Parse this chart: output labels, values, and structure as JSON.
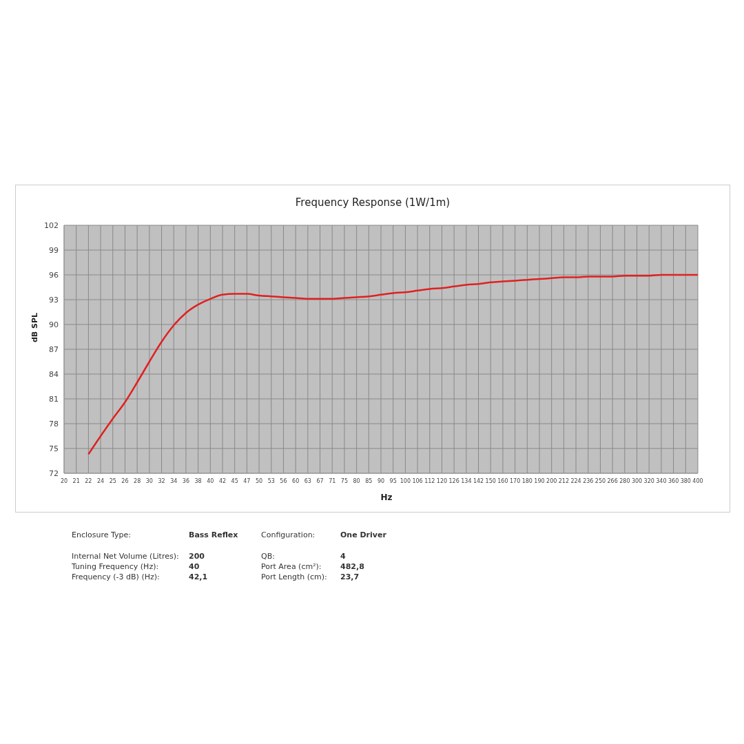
{
  "chart_data": {
    "type": "line",
    "title": "Frequency Response (1W/1m)",
    "xlabel": "Hz",
    "ylabel": "dB SPL",
    "categories": [
      "20",
      "21",
      "22",
      "24",
      "25",
      "26",
      "28",
      "30",
      "32",
      "34",
      "36",
      "38",
      "40",
      "42",
      "45",
      "47",
      "50",
      "53",
      "56",
      "60",
      "63",
      "67",
      "71",
      "75",
      "80",
      "85",
      "90",
      "95",
      "100",
      "106",
      "112",
      "120",
      "126",
      "134",
      "142",
      "150",
      "160",
      "170",
      "180",
      "190",
      "200",
      "212",
      "224",
      "236",
      "250",
      "266",
      "280",
      "300",
      "320",
      "340",
      "360",
      "380",
      "400"
    ],
    "series": [
      {
        "color": "#e02020",
        "values": [
          null,
          null,
          74.3,
          76.5,
          78.6,
          80.6,
          83.0,
          85.5,
          87.9,
          89.9,
          91.4,
          92.4,
          93.1,
          93.6,
          93.7,
          93.7,
          93.5,
          93.4,
          93.3,
          93.2,
          93.1,
          93.1,
          93.1,
          93.2,
          93.3,
          93.4,
          93.6,
          93.8,
          93.9,
          94.1,
          94.3,
          94.4,
          94.6,
          94.8,
          94.9,
          95.1,
          95.2,
          95.3,
          95.4,
          95.5,
          95.6,
          95.7,
          95.7,
          95.8,
          95.8,
          95.8,
          95.9,
          95.9,
          95.9,
          96.0,
          96.0,
          96.0,
          96.0
        ]
      }
    ],
    "ylim": [
      72,
      102
    ],
    "yticks": [
      72,
      75,
      78,
      81,
      84,
      87,
      90,
      93,
      96,
      99,
      102
    ],
    "grid": true,
    "marker": "none",
    "line_style": "solid",
    "annotations": [
      "Enclosure Type:",
      "Bass Reflex",
      "Configuration:",
      "One Driver",
      "Internal  Net Volume (Litres):",
      "200",
      "QB:",
      "4",
      "Tuning Frequency (Hz):",
      "40",
      "Port Area (cm²):",
      "482,8",
      "Frequency (-3 dB) (Hz):",
      "42,1",
      "Port Length (cm):",
      "23,7"
    ]
  }
}
